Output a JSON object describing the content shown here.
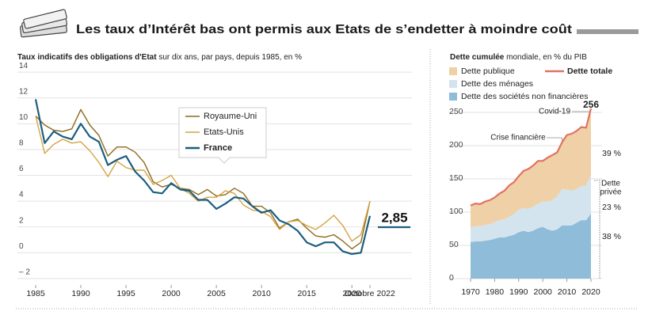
{
  "header": {
    "title": "Les taux d’Intérêt bas ont permis aux Etats de s’endetter à moindre coût"
  },
  "chart_data": [
    {
      "type": "line",
      "title": "Taux indicatifs des obligations d'Etat",
      "subtitle": "sur dix ans, par pays, depuis 1985, en %",
      "x": [
        1985,
        1986,
        1987,
        1988,
        1989,
        1990,
        1991,
        1992,
        1993,
        1994,
        1995,
        1996,
        1997,
        1998,
        1999,
        2000,
        2001,
        2002,
        2003,
        2004,
        2005,
        2006,
        2007,
        2008,
        2009,
        2010,
        2011,
        2012,
        2013,
        2014,
        2015,
        2016,
        2017,
        2018,
        2019,
        2020,
        2021,
        2022
      ],
      "series": [
        {
          "name": "Royaume-Uni",
          "color": "#8c6a1c",
          "values": [
            10.6,
            9.9,
            9.5,
            9.4,
            9.6,
            11.1,
            9.9,
            9.1,
            7.5,
            8.2,
            8.2,
            7.8,
            7.0,
            5.5,
            5.1,
            5.3,
            5.0,
            4.9,
            4.5,
            4.9,
            4.4,
            4.5,
            5.0,
            4.6,
            3.6,
            3.6,
            3.1,
            1.9,
            2.4,
            2.6,
            1.9,
            1.3,
            1.2,
            1.4,
            0.9,
            0.3,
            0.8,
            4.0
          ]
        },
        {
          "name": "Etats-Unis",
          "color": "#d6a443",
          "values": [
            10.6,
            7.7,
            8.4,
            8.8,
            8.5,
            8.6,
            7.9,
            7.0,
            5.9,
            7.1,
            6.6,
            6.4,
            6.4,
            5.3,
            5.6,
            6.0,
            5.0,
            4.6,
            4.0,
            4.3,
            4.3,
            4.8,
            4.6,
            3.7,
            3.3,
            3.2,
            2.8,
            1.8,
            2.4,
            2.5,
            2.1,
            1.8,
            2.3,
            2.9,
            2.1,
            0.9,
            1.4,
            4.0
          ]
        },
        {
          "name": "France",
          "color": "#1b5e7f",
          "values": [
            11.9,
            8.5,
            9.4,
            9.0,
            8.8,
            10.0,
            9.0,
            8.6,
            6.8,
            7.2,
            7.5,
            6.3,
            5.6,
            4.7,
            4.6,
            5.4,
            4.9,
            4.8,
            4.1,
            4.1,
            3.4,
            3.8,
            4.3,
            4.2,
            3.6,
            3.1,
            3.3,
            2.5,
            2.2,
            1.7,
            0.8,
            0.5,
            0.8,
            0.8,
            0.1,
            -0.1,
            0.0,
            2.85
          ],
          "end_label": "2,85"
        }
      ],
      "xlim": [
        1985,
        2022
      ],
      "xticks": [
        1985,
        1990,
        1995,
        2000,
        2005,
        2010,
        2015,
        2020,
        {
          "value": 2022,
          "label": "Octobre 2022"
        }
      ],
      "ylim": [
        -2.5,
        14.5
      ],
      "yticks": [
        14,
        12,
        10,
        8,
        6,
        4,
        2,
        0,
        {
          "value": -2,
          "label": "– 2"
        }
      ],
      "grid": true
    },
    {
      "type": "stacked-area",
      "title": "Dette cumulée",
      "subtitle": "mondiale, en % du PIB",
      "x": [
        1970,
        1972,
        1974,
        1976,
        1978,
        1980,
        1982,
        1984,
        1986,
        1988,
        1990,
        1992,
        1994,
        1996,
        1998,
        2000,
        2002,
        2004,
        2006,
        2008,
        2010,
        2012,
        2014,
        2016,
        2018,
        2020
      ],
      "series": [
        {
          "name": "Dette publique",
          "color": "#f0d0a6",
          "values": [
            33,
            34,
            33,
            35,
            36,
            37,
            40,
            43,
            47,
            48,
            50,
            56,
            60,
            62,
            64,
            61,
            66,
            68,
            66,
            70,
            82,
            86,
            87,
            89,
            87,
            100
          ]
        },
        {
          "name": "Dette des ménages",
          "color": "#d3e4ee",
          "values": [
            22,
            23,
            23,
            24,
            24,
            25,
            26,
            27,
            29,
            31,
            34,
            34,
            35,
            36,
            37,
            38,
            42,
            46,
            50,
            55,
            54,
            52,
            51,
            51,
            52,
            58
          ]
        },
        {
          "name": "Dette des sociétés non financières",
          "color": "#8fbcd8",
          "values": [
            55,
            56,
            56,
            57,
            58,
            60,
            62,
            62,
            64,
            66,
            70,
            72,
            70,
            72,
            76,
            78,
            74,
            72,
            74,
            80,
            80,
            80,
            84,
            88,
            88,
            98
          ]
        }
      ],
      "total": {
        "name": "Dette totale",
        "color": "#e07262",
        "values": [
          110,
          113,
          112,
          116,
          118,
          122,
          128,
          132,
          140,
          145,
          154,
          162,
          165,
          170,
          177,
          177,
          182,
          186,
          190,
          205,
          216,
          218,
          222,
          228,
          227,
          256
        ],
        "end_label": "256"
      },
      "annotations": [
        "Covid-19",
        "Crise financière"
      ],
      "share_labels": [
        "39 %",
        "23 %",
        "38 %"
      ],
      "private_label": [
        "Dette",
        "privée"
      ],
      "xlim": [
        1970,
        2020
      ],
      "xticks": [
        1970,
        1980,
        1990,
        2000,
        2010,
        2020
      ],
      "ylim": [
        0,
        250
      ],
      "yticks": [
        0,
        50,
        100,
        150,
        200,
        250
      ],
      "grid": true
    }
  ]
}
